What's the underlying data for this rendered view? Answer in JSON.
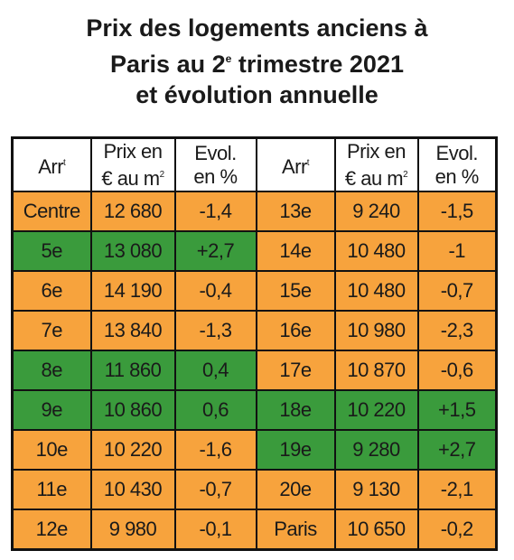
{
  "header": {
    "title_lines": [
      [
        "Prix des logements anciens à"
      ],
      [
        "Paris au 2",
        "e",
        " trimestre 2021"
      ],
      [
        "et évolution annuelle"
      ]
    ]
  },
  "table": {
    "columns": [
      {
        "lines": [
          [
            "Arr",
            "t"
          ]
        ]
      },
      {
        "lines": [
          [
            "Prix en"
          ],
          [
            "€ au m",
            "2"
          ]
        ]
      },
      {
        "lines": [
          [
            "Evol."
          ],
          [
            "en %"
          ]
        ]
      },
      {
        "lines": [
          [
            "Arr",
            "t"
          ]
        ]
      },
      {
        "lines": [
          [
            "Prix en"
          ],
          [
            "€ au m",
            "2"
          ]
        ]
      },
      {
        "lines": [
          [
            "Evol."
          ],
          [
            "en %"
          ]
        ]
      }
    ],
    "rows": [
      {
        "cells": [
          "Centre",
          "12 680",
          "-1,4",
          "13e",
          "9 240",
          "-1,5"
        ],
        "colors": [
          "#f7a33d",
          "#f7a33d"
        ]
      },
      {
        "cells": [
          "5e",
          "13 080",
          "+2,7",
          "14e",
          "10 480",
          "-1"
        ],
        "colors": [
          "#3a9b3c",
          "#f7a33d"
        ]
      },
      {
        "cells": [
          "6e",
          "14 190",
          "-0,4",
          "15e",
          "10 480",
          "-0,7"
        ],
        "colors": [
          "#f7a33d",
          "#f7a33d"
        ]
      },
      {
        "cells": [
          "7e",
          "13 840",
          "-1,3",
          "16e",
          "10 980",
          "-2,3"
        ],
        "colors": [
          "#f7a33d",
          "#f7a33d"
        ]
      },
      {
        "cells": [
          "8e",
          "11 860",
          "0,4",
          "17e",
          "10 870",
          "-0,6"
        ],
        "colors": [
          "#3a9b3c",
          "#f7a33d"
        ]
      },
      {
        "cells": [
          "9e",
          "10 860",
          "0,6",
          "18e",
          "10 220",
          "+1,5"
        ],
        "colors": [
          "#3a9b3c",
          "#3a9b3c"
        ]
      },
      {
        "cells": [
          "10e",
          "10 220",
          "-1,6",
          "19e",
          "9 280",
          "+2,7"
        ],
        "colors": [
          "#f7a33d",
          "#3a9b3c"
        ]
      },
      {
        "cells": [
          "11e",
          "10 430",
          "-0,7",
          "20e",
          "9 130",
          "-2,1"
        ],
        "colors": [
          "#f7a33d",
          "#f7a33d"
        ]
      },
      {
        "cells": [
          "12e",
          "9 980",
          "-0,1",
          "Paris",
          "10 650",
          "-0,2"
        ],
        "colors": [
          "#f7a33d",
          "#f7a33d"
        ]
      }
    ]
  }
}
